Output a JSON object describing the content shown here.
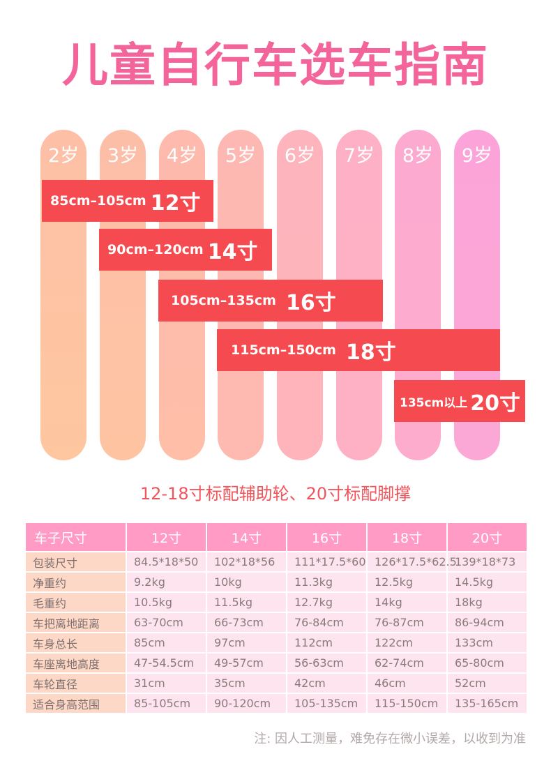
{
  "title": "儿童自行车选车指南",
  "ages": [
    "2岁",
    "3岁",
    "4岁",
    "5岁",
    "6岁",
    "7岁",
    "8岁",
    "9岁"
  ],
  "age_colors": [
    [
      "#fdc0a6",
      "#fec7a0"
    ],
    [
      "#fdbea8",
      "#fec4a2"
    ],
    [
      "#fdbaad",
      "#febea8"
    ],
    [
      "#fdb8b3",
      "#feb9b0"
    ],
    [
      "#feb4bc",
      "#feb4ba"
    ],
    [
      "#feb0c6",
      "#feb0c4"
    ],
    [
      "#fdaad0",
      "#fdacce"
    ],
    [
      "#fca4d9",
      "#fba8d6"
    ]
  ],
  "recommendations": [
    {
      "range": "85cm–105cm",
      "size": "12寸"
    },
    {
      "range": "90cm–120cm",
      "size": "14寸"
    },
    {
      "range": "105cm–135cm",
      "size": "16寸"
    },
    {
      "range": "115cm–150cm",
      "size": "18寸"
    },
    {
      "range": "135cm以上",
      "size": "20寸"
    }
  ],
  "subtitle": "12-18寸标配辅助轮、20寸标配脚撑",
  "table": {
    "header": [
      "车子尺寸",
      "12寸",
      "14寸",
      "16寸",
      "18寸",
      "20寸"
    ],
    "rows": [
      [
        "包装尺寸",
        "84.5*18*50",
        "102*18*56",
        "111*17.5*60",
        "126*17.5*62.5",
        "139*18*73"
      ],
      [
        "净重约",
        "9.2kg",
        "10kg",
        "11.3kg",
        "12.5kg",
        "14.5kg"
      ],
      [
        "毛重约",
        "10.5kg",
        "11.5kg",
        "12.7kg",
        "14kg",
        "18kg"
      ],
      [
        "车把离地距离",
        "63-70cm",
        "66-73cm",
        "76-84cm",
        "76-87cm",
        "86-94cm"
      ],
      [
        "车身总长",
        "85cm",
        "97cm",
        "112cm",
        "122cm",
        "133cm"
      ],
      [
        "车座离地高度",
        "47-54.5cm",
        "49-57cm",
        "56-63cm",
        "62-74cm",
        "65-80cm"
      ],
      [
        "车轮直径",
        "31cm",
        "35cm",
        "42cm",
        "46cm",
        "52cm"
      ],
      [
        "适合身高范围",
        "85-105cm",
        "90-120cm",
        "105-135cm",
        "115-150cm",
        "135-165cm"
      ]
    ]
  },
  "footer_note": "注: 因人工测量，难免存在微小误差，以收到为准"
}
